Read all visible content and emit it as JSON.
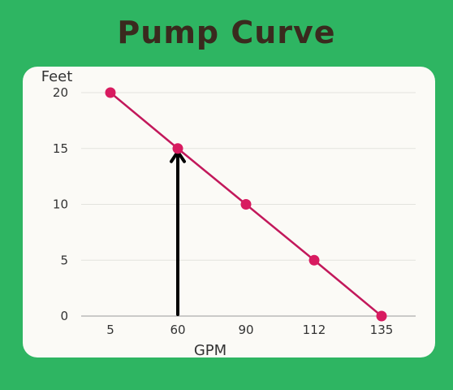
{
  "title": "Pump Curve",
  "chart_data": {
    "type": "line",
    "title": "Pump Curve",
    "xlabel": "GPM",
    "ylabel": "Feet",
    "categories": [
      "5",
      "60",
      "90",
      "112",
      "135"
    ],
    "series": [
      {
        "values": [
          20,
          15,
          10,
          5,
          0
        ]
      }
    ],
    "yticks": [
      "0",
      "5",
      "10",
      "15",
      "20"
    ],
    "ylim": [
      0,
      20
    ],
    "grid": true,
    "annotation": {
      "type": "arrow",
      "x": "60",
      "from_y": 0,
      "to_y": 15
    },
    "colors": {
      "line": "#c2185b",
      "marker": "#d81b60",
      "arrow": "#000000",
      "background": "#2eb562",
      "title": "#3a2a1e"
    }
  }
}
